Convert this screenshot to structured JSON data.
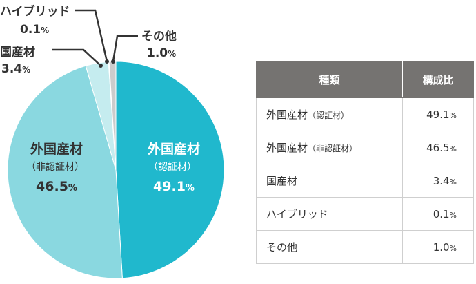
{
  "chart_data": {
    "type": "pie",
    "slices": [
      {
        "label_main": "外国産材",
        "label_sub": "（認証材）",
        "value": 49.1,
        "value_text": "49.1",
        "unit": "%",
        "color": "#20b8cd"
      },
      {
        "label_main": "外国産材",
        "label_sub": "（非認証材）",
        "value": 46.5,
        "value_text": "46.5",
        "unit": "%",
        "color": "#8ad8e0"
      },
      {
        "label_main": "国産材",
        "label_sub": "",
        "value": 3.4,
        "value_text": "3.4",
        "unit": "%",
        "color": "#c5ecef"
      },
      {
        "label_main": "ハイブリッド",
        "label_sub": "",
        "value": 0.1,
        "value_text": "0.1",
        "unit": "%",
        "color": "#f2f2f2"
      },
      {
        "label_main": "その他",
        "label_sub": "",
        "value": 1.0,
        "value_text": "1.0",
        "unit": "%",
        "color": "#cccccc"
      }
    ]
  },
  "table": {
    "headers": [
      "種類",
      "構成比"
    ],
    "rows": [
      {
        "name": "外国産材",
        "paren": "（認証材）",
        "value": "49.1",
        "unit": "%"
      },
      {
        "name": "外国産材",
        "paren": "（非認証材）",
        "value": "46.5",
        "unit": "%"
      },
      {
        "name": "国産材",
        "paren": "",
        "value": "3.4",
        "unit": "%"
      },
      {
        "name": "ハイブリッド",
        "paren": "",
        "value": "0.1",
        "unit": "%"
      },
      {
        "name": "その他",
        "paren": "",
        "value": "1.0",
        "unit": "%"
      }
    ]
  }
}
